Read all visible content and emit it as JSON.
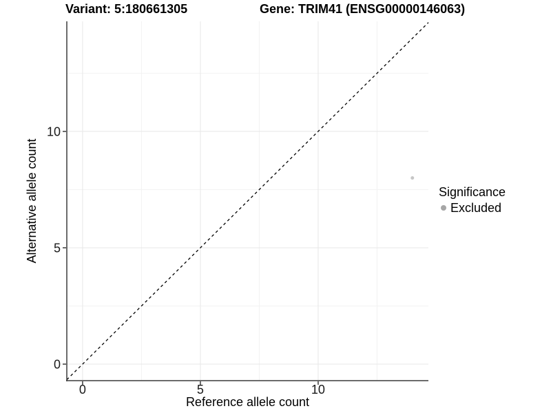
{
  "header": {
    "variant_title": "Variant: 5:180661305",
    "gene_title": "Gene: TRIM41 (ENSG00000146063)"
  },
  "chart_data": {
    "type": "scatter",
    "xlabel": "Reference allele count",
    "ylabel": "Alternative allele count",
    "xlim": [
      -0.67,
      14.68
    ],
    "ylim": [
      -0.71,
      14.73
    ],
    "xticks": [
      0,
      5,
      10
    ],
    "yticks": [
      0,
      5,
      10
    ],
    "minor_xticks": [
      2.5,
      7.5,
      12.5
    ],
    "minor_yticks": [
      2.5,
      7.5,
      12.5
    ],
    "grid": true,
    "points": [
      {
        "x": 14,
        "y": 8,
        "series": "Excluded"
      }
    ],
    "reference_line": {
      "type": "identity",
      "style": "dashed",
      "color": "#000000"
    },
    "legend": {
      "title": "Significance",
      "position": "right",
      "items": [
        {
          "label": "Excluded",
          "color": "#a6a6a6"
        }
      ]
    },
    "colors": {
      "point_excluded": "#c6c6c6",
      "legend_dot": "#a6a6a6",
      "grid_major": "#e7e7e7",
      "grid_minor": "#f2f2f2",
      "axis_line": "#3a3a3a",
      "tick_label": "#1a1a1a"
    }
  }
}
